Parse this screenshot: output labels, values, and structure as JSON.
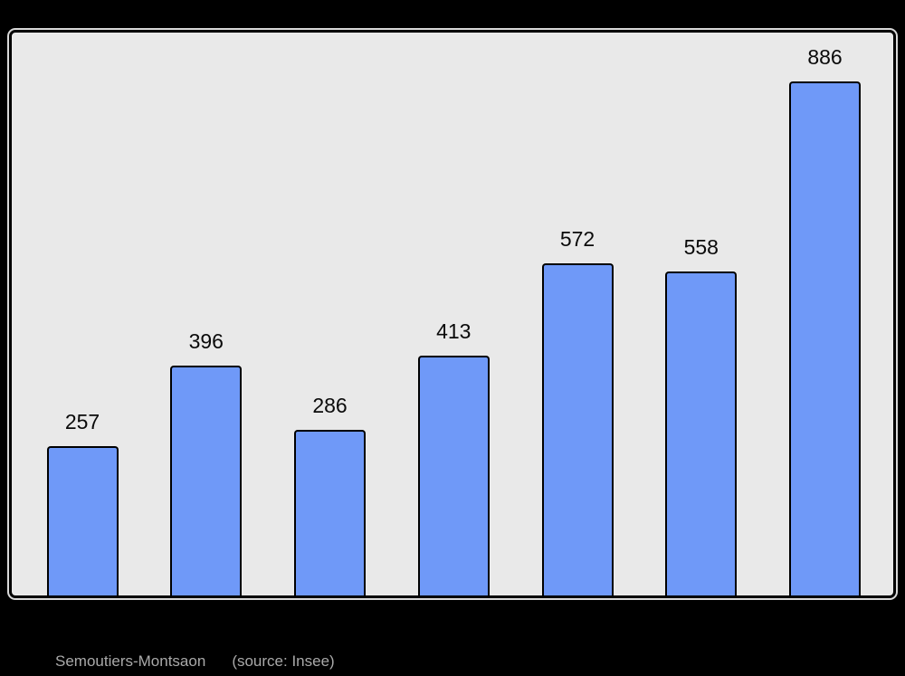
{
  "page": {
    "background": "#000000"
  },
  "chart_data": {
    "type": "bar",
    "values": [
      257,
      396,
      286,
      413,
      572,
      558,
      886
    ],
    "data_labels": [
      "257",
      "396",
      "286",
      "413",
      "572",
      "558",
      "886"
    ],
    "title": "",
    "xlabel": "",
    "ylabel": "",
    "ylim": [
      0,
      970
    ],
    "grid": false,
    "legend": false,
    "axis_tick_labels_visible": false,
    "colors": {
      "bar_fill": "#6f99f8",
      "bar_border": "#000000",
      "plot_background": "#e9e9e9",
      "frame_border": "#000000",
      "frame_highlight": "#ffffff",
      "value_label": "#0a0a0a"
    }
  },
  "caption": {
    "title": "Semoutiers-Montsaon",
    "source": "(source: Insee)",
    "color": "#a9a9a9"
  }
}
